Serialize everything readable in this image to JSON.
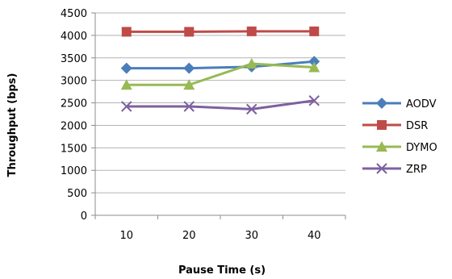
{
  "chart_data": {
    "type": "line",
    "title": "",
    "xlabel": "Pause Time (s)",
    "ylabel": "Throughput (bps)",
    "categories": [
      "10",
      "20",
      "30",
      "40"
    ],
    "ylim": [
      0,
      4500
    ],
    "yticks": [
      "0",
      "500",
      "1000",
      "1500",
      "2000",
      "2500",
      "3000",
      "3500",
      "4000",
      "4500"
    ],
    "grid": "horizontal",
    "legend_position": "right",
    "series": [
      {
        "name": "AODV",
        "values": [
          3270,
          3270,
          3300,
          3420
        ],
        "color": "#4a7ebb",
        "marker": "diamond"
      },
      {
        "name": "DSR",
        "values": [
          4080,
          4080,
          4090,
          4090
        ],
        "color": "#be4b48",
        "marker": "square"
      },
      {
        "name": "DYMO",
        "values": [
          2900,
          2900,
          3370,
          3290
        ],
        "color": "#98b954",
        "marker": "triangle"
      },
      {
        "name": "ZRP",
        "values": [
          2420,
          2420,
          2360,
          2550
        ],
        "color": "#7d60a0",
        "marker": "x"
      }
    ]
  }
}
